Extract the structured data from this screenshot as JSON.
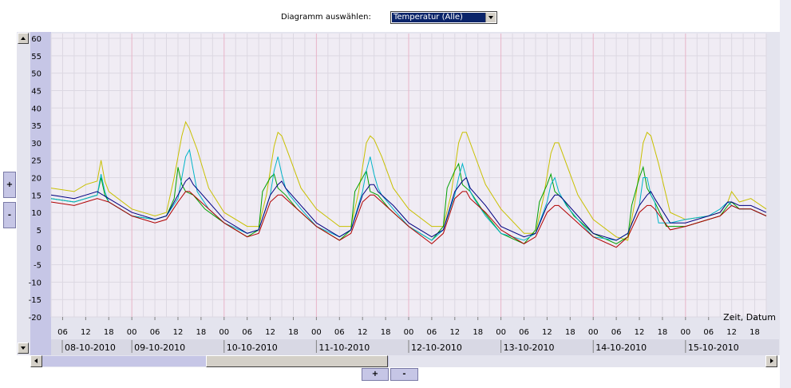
{
  "controls": {
    "select_label": "Diagramm auswählen:",
    "select_value": "Temperatur (Alle)",
    "zoom_in_y": "+",
    "zoom_out_y": "-",
    "zoom_in_x": "+",
    "zoom_out_x": "-"
  },
  "chart_data": {
    "type": "line",
    "xlabel": "Zeit, Datum",
    "ylabel": "",
    "ylim": [
      -20,
      60
    ],
    "yticks": [
      60,
      55,
      50,
      45,
      40,
      35,
      30,
      25,
      20,
      15,
      10,
      5,
      0,
      -5,
      -10,
      -15,
      -20
    ],
    "x_unit": "hours since 08-10-2010 00:00",
    "xlim": [
      3,
      189
    ],
    "hour_ticks": [
      "06",
      "12",
      "18",
      "00",
      "06",
      "12",
      "18",
      "00",
      "06",
      "12",
      "18",
      "00",
      "06",
      "12",
      "18",
      "00",
      "06",
      "12",
      "18",
      "00",
      "06",
      "12",
      "18",
      "00",
      "06",
      "12",
      "18",
      "00",
      "06",
      "12",
      "18"
    ],
    "date_labels": [
      "08-10-2010",
      "09-10-2010",
      "10-10-2010",
      "11-10-2010",
      "12-10-2010",
      "13-10-2010",
      "14-10-2010",
      "15-10-2010"
    ],
    "grid": true,
    "colors": {
      "day_gridline": "#e8b4c8",
      "minor_gridline": "#dcd8e2",
      "plot_background": "#f0ecf4"
    },
    "series": [
      {
        "color": "#c8c000",
        "x": [
          3,
          9,
          12,
          15,
          16,
          17,
          18,
          24,
          30,
          33,
          35,
          37,
          38,
          39,
          41,
          44,
          48,
          54,
          57,
          59,
          61,
          62,
          63,
          65,
          68,
          72,
          78,
          81,
          83,
          85,
          86,
          87,
          89,
          92,
          96,
          102,
          105,
          107,
          109,
          110,
          111,
          113,
          116,
          120,
          126,
          129,
          131,
          133,
          134,
          135,
          137,
          140,
          144,
          150,
          153,
          155,
          157,
          158,
          159,
          161,
          164,
          168,
          174,
          177,
          179,
          180,
          182,
          185,
          189
        ],
        "y": [
          17,
          16,
          18,
          19,
          25,
          19,
          16,
          11,
          9,
          10,
          20,
          32,
          36,
          34,
          28,
          17,
          10,
          6,
          6,
          15,
          29,
          33,
          32,
          26,
          17,
          11,
          6,
          6,
          16,
          30,
          32,
          31,
          26,
          17,
          11,
          6,
          6,
          15,
          30,
          33,
          33,
          27,
          18,
          11,
          4,
          4,
          14,
          27,
          30,
          30,
          24,
          15,
          8,
          3,
          2,
          14,
          30,
          33,
          32,
          24,
          10,
          8,
          9,
          10,
          13,
          16,
          13,
          14,
          11
        ]
      },
      {
        "color": "#00a000",
        "x": [
          3,
          9,
          12,
          15,
          16,
          17,
          18,
          24,
          30,
          33,
          35,
          36,
          37,
          38,
          40,
          43,
          48,
          54,
          57,
          58,
          60,
          61,
          62,
          64,
          67,
          72,
          78,
          81,
          82,
          84,
          85,
          86,
          88,
          91,
          96,
          102,
          105,
          106,
          108,
          109,
          110,
          112,
          115,
          120,
          126,
          129,
          130,
          132,
          133,
          134,
          136,
          139,
          144,
          150,
          153,
          154,
          156,
          157,
          158,
          160,
          163,
          168,
          174,
          177,
          179,
          180,
          182,
          185,
          189
        ],
        "y": [
          14,
          13,
          14,
          15,
          20,
          15,
          13,
          9,
          8,
          9,
          14,
          23,
          18,
          16,
          15,
          11,
          7,
          3,
          5,
          16,
          20,
          21,
          17,
          15,
          11,
          6,
          2,
          5,
          16,
          20,
          22,
          16,
          15,
          11,
          6,
          2,
          6,
          17,
          22,
          24,
          18,
          16,
          11,
          4,
          1,
          5,
          13,
          18,
          21,
          16,
          14,
          9,
          4,
          1,
          3,
          12,
          20,
          23,
          17,
          13,
          6,
          6,
          8,
          9,
          12,
          13,
          11,
          11,
          9
        ]
      },
      {
        "color": "#00b4c8",
        "x": [
          3,
          9,
          12,
          15,
          16,
          17,
          18,
          24,
          30,
          33,
          36,
          37,
          38,
          39,
          40,
          41,
          44,
          48,
          54,
          57,
          60,
          61,
          62,
          63,
          64,
          65,
          68,
          72,
          78,
          81,
          84,
          85,
          86,
          87,
          88,
          89,
          92,
          96,
          102,
          105,
          108,
          109,
          110,
          111,
          112,
          113,
          116,
          120,
          126,
          129,
          132,
          133,
          134,
          135,
          136,
          137,
          140,
          144,
          150,
          153,
          156,
          157,
          158,
          159,
          160,
          161,
          164,
          168,
          174,
          177,
          179,
          180,
          182,
          185,
          189
        ],
        "y": [
          14,
          13,
          14,
          15,
          21,
          16,
          13,
          9,
          8,
          9,
          14,
          20,
          26,
          28,
          22,
          16,
          11,
          7,
          4,
          5,
          15,
          22,
          26,
          21,
          17,
          15,
          11,
          6,
          3,
          5,
          16,
          22,
          26,
          21,
          17,
          15,
          11,
          6,
          2,
          5,
          15,
          20,
          24,
          20,
          16,
          14,
          9,
          4,
          2,
          4,
          13,
          18,
          20,
          16,
          14,
          12,
          8,
          3,
          2,
          4,
          12,
          20,
          20,
          15,
          13,
          7,
          7,
          8,
          9,
          11,
          13,
          12,
          11,
          11,
          9
        ]
      },
      {
        "color": "#000080",
        "x": [
          3,
          9,
          12,
          15,
          18,
          24,
          30,
          33,
          36,
          38,
          39,
          40,
          44,
          48,
          54,
          57,
          60,
          62,
          63,
          64,
          68,
          72,
          78,
          81,
          84,
          86,
          87,
          88,
          92,
          96,
          102,
          105,
          108,
          110,
          111,
          112,
          116,
          120,
          126,
          129,
          132,
          134,
          135,
          136,
          140,
          144,
          150,
          153,
          156,
          158,
          159,
          160,
          164,
          168,
          174,
          177,
          179,
          180,
          182,
          185,
          189
        ],
        "y": [
          15,
          14,
          15,
          16,
          14,
          10,
          8,
          9,
          15,
          19,
          20,
          18,
          13,
          8,
          4,
          5,
          15,
          18,
          19,
          17,
          12,
          7,
          3,
          5,
          15,
          18,
          18,
          16,
          12,
          7,
          3,
          5,
          16,
          19,
          20,
          17,
          12,
          6,
          3,
          4,
          12,
          15,
          15,
          14,
          9,
          4,
          2,
          4,
          12,
          15,
          16,
          14,
          7,
          7,
          9,
          10,
          13,
          13,
          12,
          12,
          10
        ]
      },
      {
        "color": "#b00000",
        "x": [
          3,
          9,
          12,
          15,
          18,
          24,
          30,
          33,
          36,
          38,
          39,
          40,
          44,
          48,
          54,
          57,
          60,
          62,
          63,
          64,
          68,
          72,
          78,
          81,
          84,
          86,
          87,
          88,
          92,
          96,
          102,
          105,
          108,
          110,
          111,
          112,
          116,
          120,
          126,
          129,
          132,
          134,
          135,
          136,
          140,
          144,
          150,
          153,
          156,
          158,
          159,
          160,
          164,
          168,
          174,
          177,
          179,
          180,
          182,
          185,
          189
        ],
        "y": [
          13,
          12,
          13,
          14,
          13,
          9,
          7,
          8,
          13,
          16,
          16,
          15,
          11,
          7,
          3,
          4,
          13,
          15,
          15,
          14,
          10,
          6,
          2,
          4,
          13,
          15,
          15,
          14,
          10,
          6,
          1,
          4,
          14,
          16,
          16,
          14,
          10,
          5,
          1,
          3,
          10,
          12,
          12,
          11,
          7,
          3,
          0,
          3,
          10,
          12,
          12,
          11,
          5,
          6,
          8,
          9,
          11,
          12,
          11,
          11,
          9
        ]
      }
    ]
  }
}
